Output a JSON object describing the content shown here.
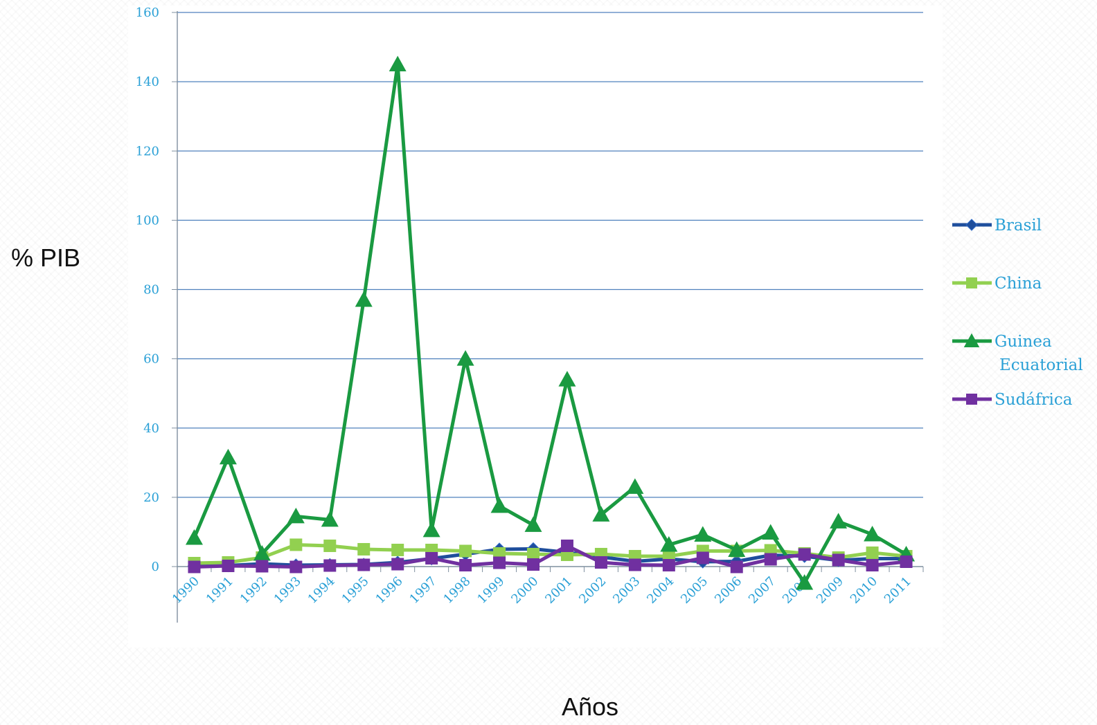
{
  "chart_data": {
    "type": "line",
    "xlabel": "Años",
    "ylabel": "% PIB",
    "ylim": [
      -5,
      160
    ],
    "yticks": [
      0,
      20,
      40,
      60,
      80,
      100,
      120,
      140,
      160
    ],
    "grid": true,
    "legend_position": "right",
    "categories": [
      "1990",
      "1991",
      "1992",
      "1993",
      "1994",
      "1995",
      "1996",
      "1997",
      "1998",
      "1999",
      "2000",
      "2001",
      "2002",
      "2003",
      "2004",
      "2005",
      "2006",
      "2007",
      "2008",
      "2009",
      "2010",
      "2011"
    ],
    "series": [
      {
        "name": "Brasil",
        "color": "#1f4e9c",
        "marker": "diamond",
        "values": [
          0.2,
          0.3,
          0.8,
          0.4,
          0.5,
          0.6,
          1.2,
          2.3,
          3.6,
          5.0,
          5.1,
          4.1,
          2.8,
          1.5,
          2.2,
          1.4,
          1.5,
          3.3,
          3.0,
          1.8,
          2.3,
          2.3
        ]
      },
      {
        "name": "China",
        "color": "#92d050",
        "marker": "square",
        "values": [
          1.0,
          1.2,
          2.6,
          6.3,
          6.0,
          5.0,
          4.8,
          4.8,
          4.5,
          3.8,
          3.6,
          3.4,
          3.6,
          3.0,
          3.0,
          4.5,
          4.5,
          4.7,
          3.8,
          2.6,
          4.0,
          3.0
        ]
      },
      {
        "name": "Guinea Ecuatorial",
        "color": "#1a9a41",
        "marker": "triangle",
        "values": [
          8.3,
          31.5,
          3.7,
          14.5,
          13.5,
          77.0,
          145.0,
          10.5,
          60.0,
          17.5,
          12.0,
          54.0,
          15.0,
          23.0,
          6.3,
          9.2,
          4.8,
          9.8,
          -4.7,
          13.0,
          9.3,
          3.5
        ]
      },
      {
        "name": "Sudáfrica",
        "color": "#7030a0",
        "marker": "square",
        "values": [
          -0.1,
          0.2,
          0.1,
          -0.1,
          0.3,
          0.5,
          0.7,
          2.4,
          0.4,
          1.1,
          0.6,
          6.0,
          1.2,
          0.5,
          0.4,
          2.5,
          -0.1,
          2.1,
          3.5,
          1.9,
          0.4,
          1.4
        ]
      }
    ]
  }
}
